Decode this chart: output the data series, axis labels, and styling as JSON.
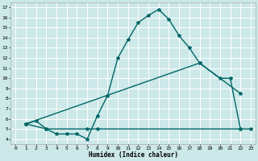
{
  "bg_color": "#cce8e8",
  "grid_color": "#ffffff",
  "line_color": "#006666",
  "line_width": 1.0,
  "marker": "*",
  "marker_size": 3,
  "xlabel": "Humidex (Indice chaleur)",
  "xlim": [
    -0.5,
    23.5
  ],
  "ylim": [
    3.5,
    17.5
  ],
  "xticks": [
    0,
    1,
    2,
    3,
    4,
    5,
    6,
    7,
    8,
    9,
    10,
    11,
    12,
    13,
    14,
    15,
    16,
    17,
    18,
    19,
    20,
    21,
    22,
    23
  ],
  "yticks": [
    4,
    5,
    6,
    7,
    8,
    9,
    10,
    11,
    12,
    13,
    14,
    15,
    16,
    17
  ],
  "curve1_x": [
    1,
    2,
    3,
    4,
    5,
    6,
    7,
    8,
    9,
    10,
    11,
    12,
    13,
    14,
    15,
    16,
    17,
    18,
    20,
    21,
    22
  ],
  "curve1_y": [
    5.5,
    5.8,
    5.0,
    4.5,
    4.5,
    4.5,
    4.0,
    6.3,
    8.3,
    12.0,
    13.8,
    15.5,
    16.2,
    16.8,
    15.8,
    14.2,
    13.0,
    11.5,
    10.0,
    10.0,
    5.0
  ],
  "curve2_x": [
    1,
    18,
    22
  ],
  "curve2_y": [
    5.5,
    11.5,
    8.5
  ],
  "curve3_x": [
    1,
    3,
    7,
    8,
    22,
    23
  ],
  "curve3_y": [
    5.5,
    5.0,
    5.0,
    5.0,
    5.0,
    5.0
  ]
}
